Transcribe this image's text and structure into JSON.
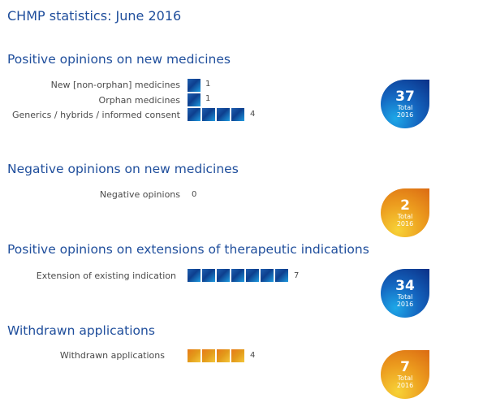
{
  "page_title": "CHMP statistics: June 2016",
  "sections": [
    {
      "title": "Positive opinions on new medicines",
      "color": "blue",
      "rows": [
        {
          "label": "New [non-orphan] medicines",
          "count": 1
        },
        {
          "label": "Orphan medicines",
          "count": 1
        },
        {
          "label": "Generics / hybrids / informed consent",
          "count": 4
        }
      ],
      "total": {
        "number": "37",
        "label": "Total",
        "year": "2016"
      }
    },
    {
      "title": "Negative opinions on new medicines",
      "color": "orange",
      "rows": [
        {
          "label": "Negative opinions",
          "count": 0
        }
      ],
      "total": {
        "number": "2",
        "label": "Total",
        "year": "2016"
      }
    },
    {
      "title": "Positive opinions on extensions of therapeutic indications",
      "color": "blue",
      "rows": [
        {
          "label": "Extension of existing indication",
          "count": 7
        }
      ],
      "total": {
        "number": "34",
        "label": "Total",
        "year": "2016"
      }
    },
    {
      "title": "Withdrawn applications",
      "color": "orange",
      "rows": [
        {
          "label": "Withdrawn applications",
          "count": 4
        }
      ],
      "total": {
        "number": "7",
        "label": "Total",
        "year": "2016"
      }
    }
  ],
  "colors": {
    "title_text": "#1f4e9c",
    "blue_accent": "#0d3f8e",
    "orange_accent": "#e77a18"
  }
}
